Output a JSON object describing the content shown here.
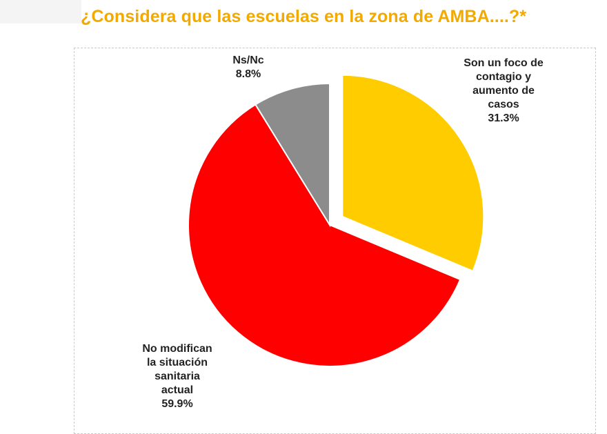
{
  "title": "¿Considera que las escuelas en la zona de AMBA....?*",
  "chart_data": {
    "type": "pie",
    "slices": [
      {
        "label_lines": [
          "Son un foco de",
          "contagio y",
          "aumento de",
          "casos"
        ],
        "value": 31.3,
        "value_text": "31.3%",
        "color": "#ffcc00",
        "exploded": true
      },
      {
        "label_lines": [
          "No modifican",
          "la situación",
          "sanitaria",
          "actual"
        ],
        "value": 59.9,
        "value_text": "59.9%",
        "color": "#ff0000",
        "exploded": false
      },
      {
        "label_lines": [
          "Ns/Nc"
        ],
        "value": 8.8,
        "value_text": "8.8%",
        "color": "#8c8c8c",
        "exploded": false
      }
    ]
  }
}
